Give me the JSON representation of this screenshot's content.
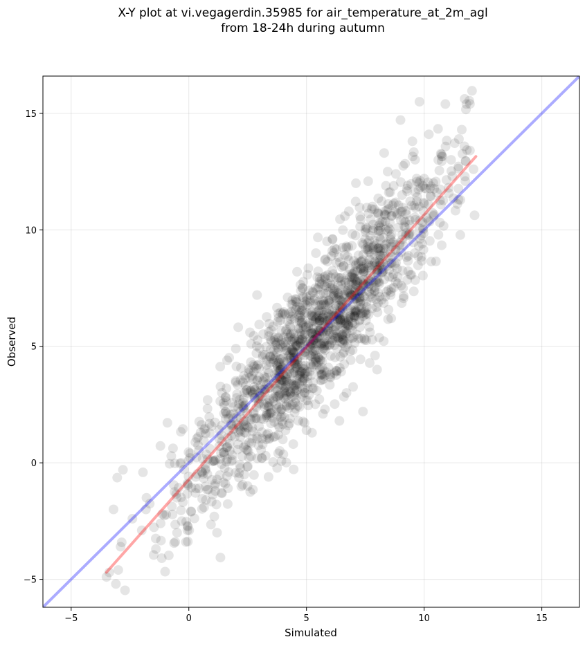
{
  "title_line1": "X-Y plot at vi.vegagerdin.35985 for air_temperature_at_2m_agl",
  "title_line2": "from 18-24h during autumn",
  "chart_data": {
    "type": "scatter",
    "title": "X-Y plot at vi.vegagerdin.35985 for air_temperature_at_2m_agl from 18-24h during autumn",
    "xlabel": "Simulated",
    "ylabel": "Observed",
    "xlim": [
      -6.2,
      16.6
    ],
    "ylim": [
      -6.2,
      16.6
    ],
    "xticks": [
      -5,
      0,
      5,
      10,
      15
    ],
    "yticks": [
      -5,
      0,
      5,
      10,
      15
    ],
    "grid": true,
    "point_color": "#000000",
    "point_opacity": 0.1,
    "sample_points": [
      [
        -3.5,
        -4.9
      ],
      [
        -3.1,
        -5.2
      ],
      [
        -3.0,
        -4.6
      ],
      [
        -2.9,
        -3.6
      ],
      [
        -3.2,
        -2.0
      ],
      [
        -2.8,
        -0.3
      ],
      [
        -2.4,
        -2.4
      ],
      [
        -2.0,
        -2.9
      ],
      [
        -1.8,
        -1.5
      ],
      [
        -1.4,
        -3.7
      ],
      [
        -1.2,
        -2.6
      ],
      [
        -0.5,
        -3.0
      ],
      [
        -0.3,
        -2.5
      ],
      [
        0.1,
        -2.1
      ],
      [
        0.3,
        -1.1
      ],
      [
        0.5,
        1.3
      ],
      [
        0.8,
        2.7
      ],
      [
        0.9,
        0.6
      ],
      [
        1.2,
        -3.0
      ],
      [
        1.4,
        1.6
      ],
      [
        1.6,
        3.2
      ],
      [
        1.7,
        -0.4
      ],
      [
        1.9,
        2.1
      ],
      [
        2.0,
        4.9
      ],
      [
        2.1,
        0.8
      ],
      [
        2.3,
        2.6
      ],
      [
        2.4,
        3.6
      ],
      [
        2.5,
        -1.0
      ],
      [
        2.6,
        5.6
      ],
      [
        2.8,
        1.9
      ],
      [
        2.9,
        7.2
      ],
      [
        3.0,
        3.0
      ],
      [
        3.1,
        0.2
      ],
      [
        3.3,
        4.2
      ],
      [
        3.4,
        2.4
      ],
      [
        3.5,
        5.7
      ],
      [
        3.6,
        1.1
      ],
      [
        3.7,
        3.4
      ],
      [
        3.8,
        6.4
      ],
      [
        3.9,
        2.7
      ],
      [
        4.0,
        4.5
      ],
      [
        4.1,
        3.7
      ],
      [
        4.2,
        7.1
      ],
      [
        4.3,
        1.9
      ],
      [
        4.4,
        5.2
      ],
      [
        4.5,
        3.9
      ],
      [
        4.6,
        8.2
      ],
      [
        4.7,
        2.4
      ],
      [
        4.8,
        6.0
      ],
      [
        4.9,
        4.6
      ],
      [
        5.0,
        1.4
      ],
      [
        5.1,
        7.4
      ],
      [
        5.2,
        5.1
      ],
      [
        5.3,
        3.2
      ],
      [
        5.4,
        9.0
      ],
      [
        5.5,
        6.3
      ],
      [
        5.6,
        4.4
      ],
      [
        5.7,
        2.1
      ],
      [
        5.8,
        7.9
      ],
      [
        5.9,
        5.7
      ],
      [
        6.0,
        3.7
      ],
      [
        6.1,
        9.6
      ],
      [
        6.2,
        6.6
      ],
      [
        6.3,
        4.9
      ],
      [
        6.4,
        1.8
      ],
      [
        6.5,
        8.4
      ],
      [
        6.6,
        6.0
      ],
      [
        6.7,
        3.0
      ],
      [
        6.8,
        10.8
      ],
      [
        6.9,
        7.2
      ],
      [
        7.0,
        5.4
      ],
      [
        7.1,
        12.0
      ],
      [
        7.2,
        8.6
      ],
      [
        7.3,
        6.4
      ],
      [
        7.4,
        2.2
      ],
      [
        7.5,
        9.9
      ],
      [
        7.6,
        7.7
      ],
      [
        7.7,
        5.6
      ],
      [
        7.8,
        11.0
      ],
      [
        7.9,
        8.9
      ],
      [
        8.0,
        4.0
      ],
      [
        8.1,
        10.3
      ],
      [
        8.2,
        7.0
      ],
      [
        8.3,
        13.3
      ],
      [
        8.4,
        9.4
      ],
      [
        8.5,
        11.6
      ],
      [
        8.6,
        6.2
      ],
      [
        8.7,
        8.1
      ],
      [
        8.8,
        12.4
      ],
      [
        8.9,
        10.1
      ],
      [
        9.1,
        7.5
      ],
      [
        9.3,
        11.9
      ],
      [
        9.5,
        13.8
      ],
      [
        9.6,
        9.0
      ],
      [
        9.8,
        15.5
      ],
      [
        10.0,
        12.2
      ],
      [
        10.2,
        14.1
      ],
      [
        10.4,
        10.6
      ],
      [
        10.6,
        13.0
      ],
      [
        10.9,
        15.4
      ],
      [
        11.2,
        12.3
      ],
      [
        11.6,
        14.3
      ],
      [
        11.8,
        15.4
      ],
      [
        12.1,
        12.6
      ]
    ],
    "series": [
      {
        "values": "scatter points (observed vs simulated)"
      }
    ],
    "lines": [
      {
        "kind": "identity",
        "color": "#0000ff",
        "opacity": 0.33,
        "x": [
          -6.2,
          16.6
        ],
        "y": [
          -6.2,
          16.6
        ]
      },
      {
        "kind": "fit",
        "color": "#ff0000",
        "opacity": 0.35,
        "x": [
          -3.5,
          12.2
        ],
        "y": [
          -4.7,
          13.15
        ]
      }
    ]
  }
}
